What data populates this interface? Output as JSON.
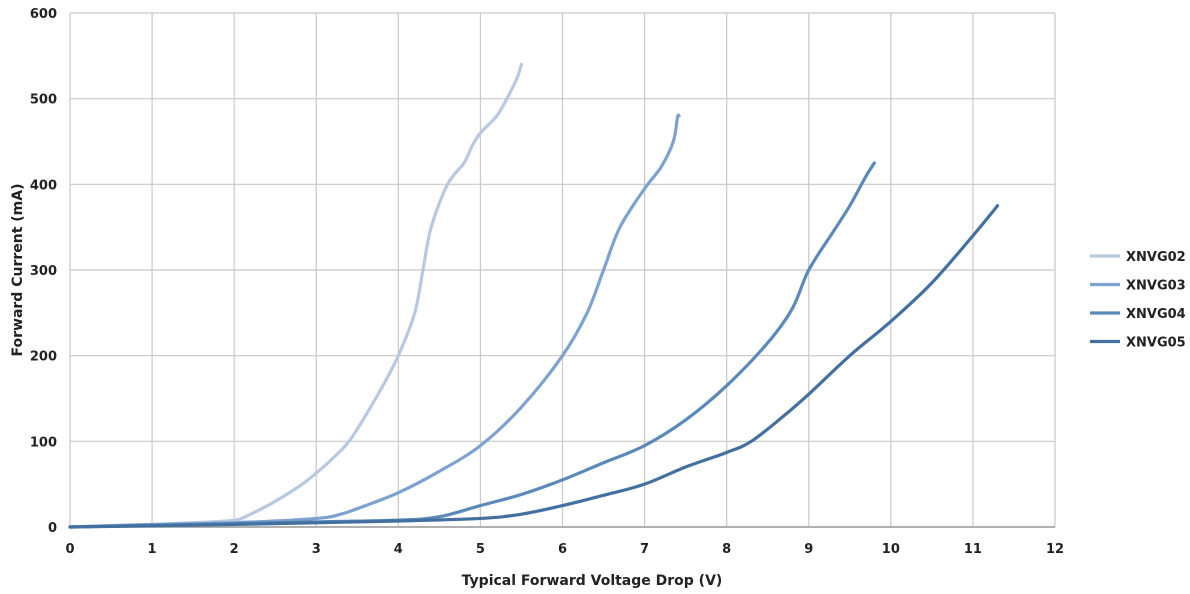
{
  "chart_data": {
    "type": "line",
    "title": "",
    "xlabel": "Typical Forward Voltage Drop (V)",
    "ylabel": "Forward Current (mA)",
    "xlim": [
      0,
      12
    ],
    "ylim": [
      0,
      600
    ],
    "x_ticks": [
      "0",
      "1",
      "2",
      "3",
      "4",
      "5",
      "6",
      "7",
      "8",
      "9",
      "10",
      "11",
      "12"
    ],
    "y_ticks": [
      "0",
      "100",
      "200",
      "300",
      "400",
      "500",
      "600"
    ],
    "grid": "both",
    "legend_position": "right",
    "series": [
      {
        "name": "XNVG02",
        "color": "#b7c9e1",
        "x": [
          0,
          1,
          1.5,
          2,
          2.2,
          2.5,
          2.8,
          3,
          3.2,
          3.4,
          3.6,
          3.8,
          4,
          4.2,
          4.3,
          4.4,
          4.6,
          4.8,
          4.9,
          5,
          5.2,
          5.35,
          5.45,
          5.5
        ],
        "y": [
          0,
          3,
          5,
          8,
          15,
          30,
          48,
          63,
          80,
          100,
          130,
          163,
          200,
          250,
          300,
          350,
          400,
          425,
          445,
          460,
          480,
          505,
          525,
          540
        ]
      },
      {
        "name": "XNVG03",
        "color": "#7da2cf",
        "x": [
          0,
          1,
          2,
          3,
          3.3,
          3.6,
          4,
          4.5,
          5,
          5.5,
          6,
          6.3,
          6.5,
          6.7,
          7,
          7.2,
          7.35,
          7.4,
          7.42
        ],
        "y": [
          0,
          3,
          5,
          10,
          15,
          25,
          40,
          65,
          95,
          140,
          200,
          250,
          300,
          350,
          395,
          420,
          450,
          478,
          480
        ]
      },
      {
        "name": "XNVG04",
        "color": "#5a89ba",
        "x": [
          0,
          2,
          3,
          4,
          4.5,
          5,
          5.5,
          6,
          6.5,
          7,
          7.5,
          8,
          8.5,
          8.8,
          9,
          9.3,
          9.5,
          9.7,
          9.8
        ],
        "y": [
          0,
          4,
          6,
          8,
          12,
          25,
          38,
          55,
          75,
          95,
          125,
          165,
          215,
          255,
          300,
          345,
          375,
          410,
          425
        ]
      },
      {
        "name": "XNVG05",
        "color": "#4270a0",
        "x": [
          0,
          2,
          3,
          4,
          5,
          5.5,
          6,
          6.5,
          7,
          7.5,
          8,
          8.3,
          8.7,
          9,
          9.5,
          10,
          10.5,
          11,
          11.3
        ],
        "y": [
          0,
          3,
          5,
          7,
          10,
          15,
          25,
          37,
          50,
          70,
          87,
          100,
          130,
          155,
          200,
          240,
          285,
          340,
          375
        ]
      }
    ]
  }
}
